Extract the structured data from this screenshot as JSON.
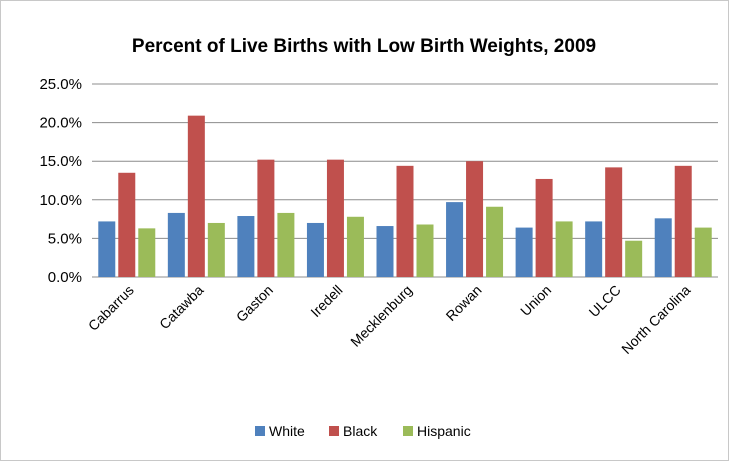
{
  "chart_data": {
    "type": "bar",
    "title": "Percent of Live Births with Low Birth Weights, 2009",
    "xlabel": "",
    "ylabel": "",
    "categories": [
      "Cabarrus",
      "Catawba",
      "Gaston",
      "Iredell",
      "Mecklenburg",
      "Rowan",
      "Union",
      "ULCC",
      "North Carolina"
    ],
    "series": [
      {
        "name": "White",
        "color": "#4f81bd",
        "values": [
          7.2,
          8.3,
          7.9,
          7.0,
          6.6,
          9.7,
          6.4,
          7.2,
          7.6
        ]
      },
      {
        "name": "Black",
        "color": "#c0504d",
        "values": [
          13.5,
          20.9,
          15.2,
          15.2,
          14.4,
          15.0,
          12.7,
          14.2,
          14.4
        ]
      },
      {
        "name": "Hispanic",
        "color": "#9bbb59",
        "values": [
          6.3,
          7.0,
          8.3,
          7.8,
          6.8,
          9.1,
          7.2,
          4.7,
          6.4
        ]
      }
    ],
    "ylim": [
      0,
      25
    ],
    "yticks": [
      "0.0%",
      "5.0%",
      "10.0%",
      "15.0%",
      "20.0%",
      "25.0%"
    ],
    "grid": true,
    "legend_position": "bottom"
  }
}
